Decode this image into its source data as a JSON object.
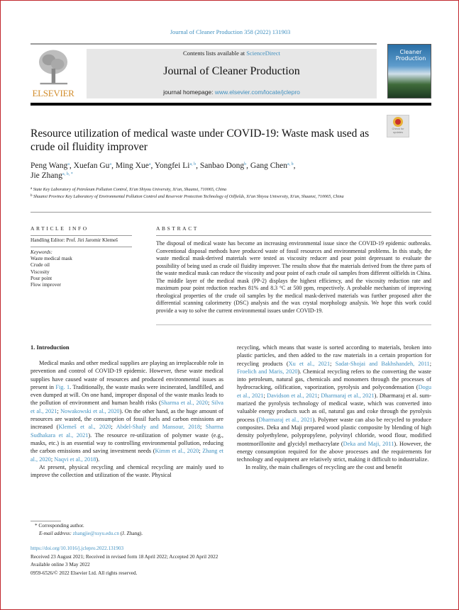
{
  "journal_ref": "Journal of Cleaner Production 358 (2022) 131903",
  "masthead": {
    "publisher": "ELSEVIER",
    "contents_prefix": "Contents lists available at ",
    "contents_link": "ScienceDirect",
    "journal_title": "Journal of Cleaner Production",
    "homepage_prefix": "journal homepage: ",
    "homepage_link": "www.elsevier.com/locate/jclepro",
    "cover_title": "Cleaner Production",
    "check_updates": "Check for updates"
  },
  "title": "Resource utilization of medical waste under COVID-19: Waste mask used as crude oil fluidity improver",
  "authors": [
    {
      "name": "Peng Wang",
      "sup": "a"
    },
    {
      "name": "Xuefan Gu",
      "sup": "a"
    },
    {
      "name": "Ming Xue",
      "sup": "a"
    },
    {
      "name": "Yongfei Li",
      "sup": "a, b"
    },
    {
      "name": "Sanbao Dong",
      "sup": "b"
    },
    {
      "name": "Gang Chen",
      "sup": "a, b"
    },
    {
      "name": "Jie Zhang",
      "sup": "a, b, *"
    }
  ],
  "affiliations": [
    {
      "sup": "a",
      "text": "State Key Laboratory of Petroleum Pollution Control, Xi'an Shiyou University, Xi'an, Shaanxi, 710065, China"
    },
    {
      "sup": "b",
      "text": "Shaanxi Province Key Laboratory of Environmental Pollution Control and Reservoir Protection Technology of Oilfields, Xi'an Shiyou University, Xi'an, Shaanxi, 710065, China"
    }
  ],
  "article_info": {
    "heading": "ARTICLE INFO",
    "handling_editor": "Handling Editor: Prof. Jiri Jaromir Klemeš",
    "keywords_label": "Keywords:",
    "keywords": [
      "Waste medical mask",
      "Crude oil",
      "Viscosity",
      "Pour point",
      "Flow improver"
    ]
  },
  "abstract": {
    "heading": "ABSTRACT",
    "text": "The disposal of medical waste has become an increasing environmental issue since the COVID-19 epidemic outbreaks. Conventional disposal methods have produced waste of fossil resources and environmental problems. In this study, the waste medical mask-derived materials were tested as viscosity reducer and pour point depressant to evaluate the possibility of being used as crude oil fluidity improver. The results show that the materials derived from the three parts of the waste medical mask can reduce the viscosity and pour point of each crude oil samples from different oilfields in China. The middle layer of the medical mask (PP-2) displays the highest efficiency, and the viscosity reduction rate and maximum pour point reduction reaches 81% and 8.3 °C at 500 ppm, respectively. A probable mechanism of improving rheological properties of the crude oil samples by the medical mask-derived materials was further proposed after the differential scanning calorimetry (DSC) analysis and the wax crystal morphology analysis. We hope this work could provide a way to solve the current environmental issues under COVID-19."
  },
  "intro": {
    "heading": "1.  Introduction",
    "left": [
      [
        {
          "t": "Medical masks and other medical supplies are playing an irreplace­able role in prevention and control of COVID-19 epidemic. However, these waste medical supplies have caused waste of resources and pro­duced environmental issues as present in "
        },
        {
          "t": "Fig. 1",
          "l": 1
        },
        {
          "t": ". Traditionally, the waste masks were incinerated, landfilled, and even dumped at will. On one hand, improper disposal of the waste masks leads to the pollution of environment and human health risks ("
        },
        {
          "t": "Sharma et al., 2020",
          "l": 1
        },
        {
          "t": "; "
        },
        {
          "t": "Silva et al., 2021",
          "l": 1
        },
        {
          "t": "; "
        },
        {
          "t": "Nowakowski et al., 2020",
          "l": 1
        },
        {
          "t": "). On the other hand, as the huge amount of resources are wasted, the consumption of fossil fuels and carbon emissions are increased ("
        },
        {
          "t": "Klemeš et al., 2020",
          "l": 1
        },
        {
          "t": "; "
        },
        {
          "t": "Abdel-Shafy and Mansour, 2018",
          "l": 1
        },
        {
          "t": "; "
        },
        {
          "t": "Sharma Sudhakara et al., 2021",
          "l": 1
        },
        {
          "t": "). The resource re-utilization of polymer waste (e.g., masks, etc.) is an essential way to controlling environmental pollution, reducing the carbon emissions and saving in­vestment needs ("
        },
        {
          "t": "Kimm et al., 2020",
          "l": 1
        },
        {
          "t": "; "
        },
        {
          "t": "Zhang et al., 2020",
          "l": 1
        },
        {
          "t": "; "
        },
        {
          "t": "Naqvi et al., 2018",
          "l": 1
        },
        {
          "t": ")."
        }
      ],
      [
        {
          "t": "At present, physical recycling and chemical recycling are mainly used to improve the collection and utilization of the waste. Physical"
        }
      ]
    ],
    "right": [
      [
        {
          "t": "recycling, which means that waste is sorted according to materials, broken into plastic particles, and then added to the raw materials in a certain proportion for recycling products ("
        },
        {
          "t": "Xu et al., 2021",
          "l": 1
        },
        {
          "t": "; "
        },
        {
          "t": "Sadat-Shojai and Bakhshandeh, 2011",
          "l": 1
        },
        {
          "t": "; "
        },
        {
          "t": "Froelich and Maris, 2020",
          "l": 1
        },
        {
          "t": "). Chemical recycling refers to the converting the waste into petroleum, natural gas, chemicals and monomers through the processes of hydrocracking, oilification, vaporization, pyrolysis and polycondensation ("
        },
        {
          "t": "Dogu et al., 2021",
          "l": 1
        },
        {
          "t": "; "
        },
        {
          "t": "Davidson et al., 2021",
          "l": 1
        },
        {
          "t": "; "
        },
        {
          "t": "Dharmaraj et al., 2021",
          "l": 1
        },
        {
          "t": "). Dharmaraj et al. sum­marized the pyrolysis technology of medical waste, which was con­verted into valuable energy products such as oil, natural gas and coke through the pyrolysis process ("
        },
        {
          "t": "Dharmaraj et al., 2021",
          "l": 1
        },
        {
          "t": "). Polymer waste can also be recycled to produce composites. Deka and Maji prepared wood plastic composite by blending of high density polyethylene, polypropylene, polyvinyl chloride, wood flour, modified montmoril­lonite and glycidyl methacrylate ("
        },
        {
          "t": "Deka and Maji, 2011",
          "l": 1
        },
        {
          "t": "). However, the energy consumption required for the above processes and the re­quirements for technology and equipment are relatively strict, making it difficult to industrialize."
        }
      ],
      [
        {
          "t": "In reality, the main challenges of recycling are the cost and benefit"
        }
      ]
    ]
  },
  "footnote": {
    "corresponding": "* Corresponding author.",
    "email_label": "E-mail address: ",
    "email": "zhangjie@xsyu.edu.cn",
    "email_suffix": " (J. Zhang)."
  },
  "doi": "https://doi.org/10.1016/j.jclepro.2022.131903",
  "received": "Received 23 August 2021; Received in revised form 18 April 2022; Accepted 20 April 2022",
  "available": "Available online 3 May 2022",
  "copyright": "0959-6526/© 2022 Elsevier Ltd. All rights reserved.",
  "colors": {
    "link": "#3f8fbf",
    "elsevier": "#d28d2c",
    "border": "#c0262c"
  }
}
